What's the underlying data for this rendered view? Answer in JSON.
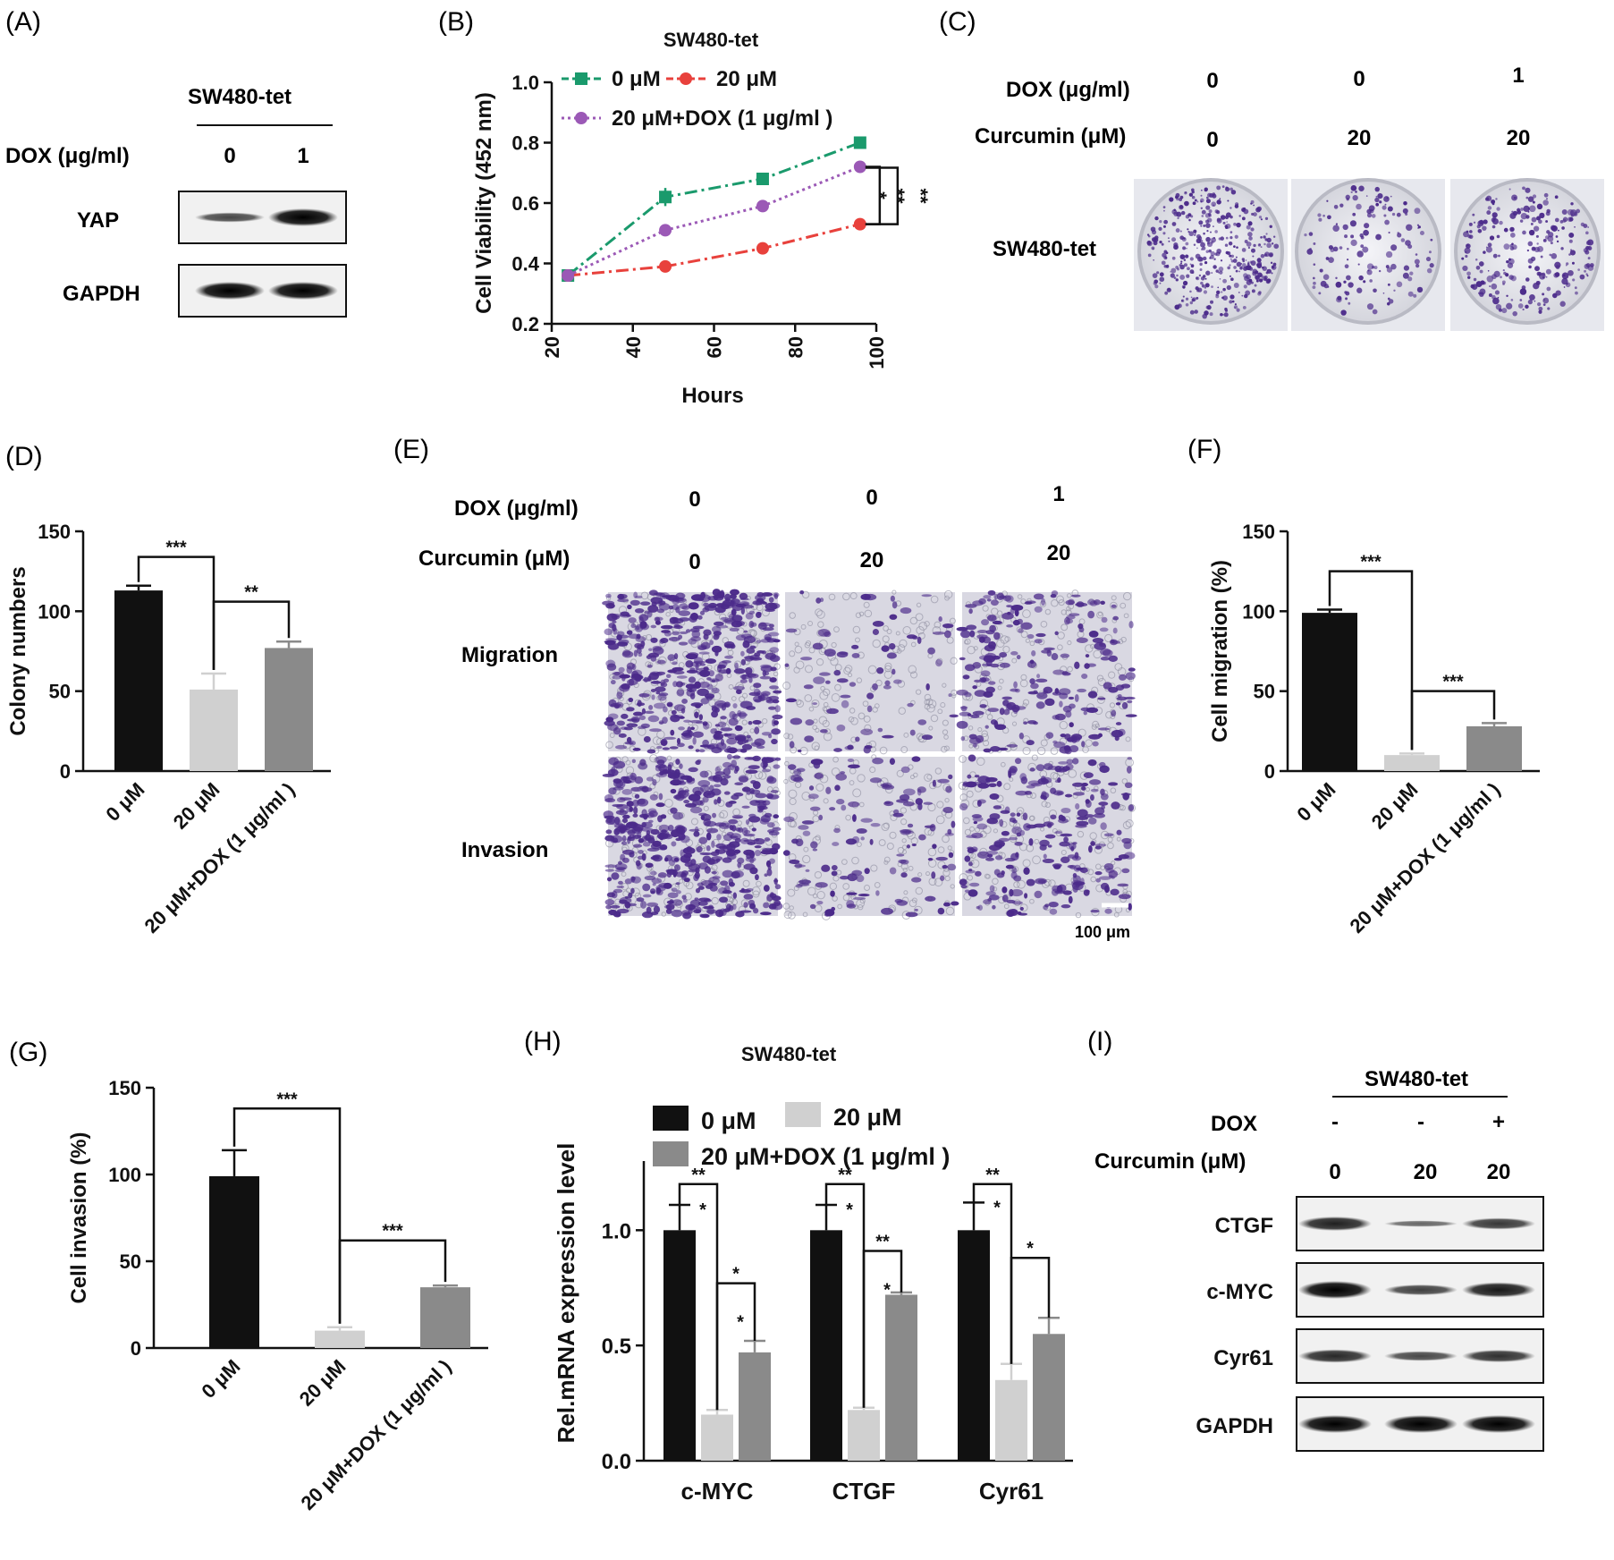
{
  "panel_labels": [
    "(A)",
    "(B)",
    "(C)",
    "(D)",
    "(E)",
    "(F)",
    "(G)",
    "(H)",
    "(I)"
  ],
  "colors": {
    "black": "#111111",
    "light_gray": "#d0d0d0",
    "mid_gray": "#8a8a8a",
    "green": "#1a9a6c",
    "red": "#e8413c",
    "purple": "#9b59b6",
    "stain": "#4b2a8a"
  },
  "panelA": {
    "cell_line": "SW480-tet",
    "dox_label": "DOX (μg/ml)",
    "dox_values": [
      "0",
      "1"
    ],
    "bands": [
      {
        "label": "YAP",
        "intensity": [
          0.55,
          1.0
        ]
      },
      {
        "label": "GAPDH",
        "intensity": [
          1.0,
          1.0
        ]
      }
    ]
  },
  "panelC": {
    "dox_label": "DOX (μg/ml)",
    "curcumin_label": "Curcumin (μM)",
    "dox_values": [
      "0",
      "0",
      "1"
    ],
    "curcumin_values": [
      "0",
      "20",
      "20"
    ],
    "row_label": "SW480-tet",
    "colony_density": [
      1.0,
      0.35,
      0.6
    ]
  },
  "panelE": {
    "dox_label": "DOX (μg/ml)",
    "curcumin_label": "Curcumin (μM)",
    "dox_values": [
      "0",
      "0",
      "1"
    ],
    "curcumin_values": [
      "0",
      "20",
      "20"
    ],
    "rows": [
      "Migration",
      "Invasion"
    ],
    "scale_bar": "100 μm",
    "cell_density": [
      [
        1.0,
        0.15,
        0.45
      ],
      [
        1.0,
        0.25,
        0.5
      ]
    ]
  },
  "panelI": {
    "cell_line": "SW480-tet",
    "dox_label": "DOX",
    "curcumin_label": "Curcumin (μM)",
    "dox_values": [
      "-",
      "-",
      "+"
    ],
    "curcumin_values": [
      "0",
      "20",
      "20"
    ],
    "bands": [
      {
        "label": "CTGF",
        "intensity": [
          0.8,
          0.35,
          0.65
        ]
      },
      {
        "label": "c-MYC",
        "intensity": [
          1.0,
          0.6,
          0.85
        ]
      },
      {
        "label": "Cyr61",
        "intensity": [
          0.75,
          0.55,
          0.7
        ]
      },
      {
        "label": "GAPDH",
        "intensity": [
          1.0,
          1.0,
          1.0
        ]
      }
    ]
  },
  "chart_data": [
    {
      "id": "B",
      "type": "line",
      "title": "SW480-tet",
      "xlabel": "Hours",
      "ylabel": "Cell Viability (452 nm)",
      "xlim": [
        20,
        100
      ],
      "ylim": [
        0.2,
        1.0
      ],
      "xticks": [
        20,
        40,
        60,
        80,
        100
      ],
      "yticks": [
        0.2,
        0.4,
        0.6,
        0.8,
        1.0
      ],
      "x": [
        24,
        48,
        72,
        96
      ],
      "series": [
        {
          "name": "0 μM",
          "values": [
            0.36,
            0.62,
            0.68,
            0.8
          ],
          "errors": [
            0.01,
            0.03,
            0.01,
            0.01
          ],
          "color": "#1a9a6c",
          "marker": "square",
          "dash": "14,5,3,5"
        },
        {
          "name": "20 μM",
          "values": [
            0.36,
            0.39,
            0.45,
            0.53
          ],
          "errors": [
            0.01,
            0.01,
            0.01,
            0.01
          ],
          "color": "#e8413c",
          "marker": "circle",
          "dash": "14,5,3,5"
        },
        {
          "name": "20 μM+DOX (1 μg/ml )",
          "values": [
            0.36,
            0.51,
            0.59,
            0.72
          ],
          "errors": [
            0.01,
            0.01,
            0.01,
            0.01
          ],
          "color": "#9b59b6",
          "marker": "circle",
          "dash": "3,4"
        }
      ],
      "annotations": [
        "*",
        "**",
        "**"
      ],
      "legend": "top-left"
    },
    {
      "id": "D",
      "type": "bar",
      "ylabel": "Colony numbers",
      "ylim": [
        0,
        150
      ],
      "yticks": [
        0,
        50,
        100,
        150
      ],
      "categories": [
        "0 μM",
        "20 μM",
        "20 μM+DOX (1 μg/ml )"
      ],
      "values": [
        113,
        51,
        77
      ],
      "errors": [
        3,
        10,
        4
      ],
      "annotations": [
        "***",
        "**"
      ]
    },
    {
      "id": "F",
      "type": "bar",
      "ylabel": "Cell migration (%)",
      "ylim": [
        0,
        150
      ],
      "yticks": [
        0,
        50,
        100,
        150
      ],
      "categories": [
        "0 μM",
        "20 μM",
        "20 μM+DOX (1 μg/ml )"
      ],
      "values": [
        99,
        10,
        28
      ],
      "errors": [
        2,
        1,
        2
      ],
      "annotations": [
        "***",
        "***"
      ]
    },
    {
      "id": "G",
      "type": "bar",
      "ylabel": "Cell invasion (%)",
      "ylim": [
        0,
        150
      ],
      "yticks": [
        0,
        50,
        100,
        150
      ],
      "categories": [
        "0 μM",
        "20 μM",
        "20 μM+DOX (1 μg/ml )"
      ],
      "values": [
        99,
        10,
        35
      ],
      "errors": [
        15,
        2,
        1
      ],
      "annotations": [
        "***",
        "***"
      ]
    },
    {
      "id": "H",
      "type": "bar",
      "title": "SW480-tet",
      "ylabel": "Rel.mRNA expression level",
      "ylim": [
        0,
        1.3
      ],
      "yticks": [
        0.0,
        0.5,
        1.0
      ],
      "categories": [
        "c-MYC",
        "CTGF",
        "Cyr61"
      ],
      "series": [
        {
          "name": "0 μM",
          "values": [
            1.0,
            1.0,
            1.0
          ],
          "errors": [
            0.11,
            0.11,
            0.12
          ],
          "color": "#111111"
        },
        {
          "name": "20 μM",
          "values": [
            0.2,
            0.22,
            0.35
          ],
          "errors": [
            0.02,
            0.01,
            0.07
          ],
          "color": "#d0d0d0"
        },
        {
          "name": "20 μM+DOX (1 μg/ml )",
          "values": [
            0.47,
            0.72,
            0.55
          ],
          "errors": [
            0.05,
            0.01,
            0.07
          ],
          "color": "#8a8a8a"
        }
      ],
      "annotations": [
        [
          "**",
          "*",
          "*",
          "*"
        ],
        [
          "**",
          "*",
          "**",
          "*"
        ],
        [
          "**",
          "*",
          "*"
        ]
      ],
      "legend": "top"
    }
  ]
}
